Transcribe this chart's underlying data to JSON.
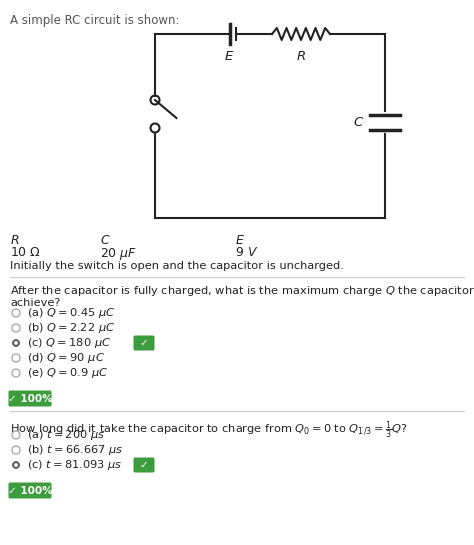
{
  "title": "A simple RC circuit is shown:",
  "bg_color": "#ffffff",
  "text_color": "#222222",
  "circuit_color": "#222222",
  "params_note": "Initially the switch is open and the capacitor is uncharged.",
  "q1_line1": "After the capacitor is fully charged, what is the maximum charge $Q$ the capacitor will",
  "q1_line2": "achieve?",
  "q1_options": [
    {
      "label": "(a) $Q = 0.45\\ \\mu C$",
      "selected": false,
      "correct": false
    },
    {
      "label": "(b) $Q = 2.22\\ \\mu C$",
      "selected": false,
      "correct": false
    },
    {
      "label": "(c) $Q = 180\\ \\mu C$",
      "selected": true,
      "correct": true
    },
    {
      "label": "(d) $Q = 90\\ \\mu C$",
      "selected": false,
      "correct": false
    },
    {
      "label": "(e) $Q = 0.9\\ \\mu C$",
      "selected": false,
      "correct": false
    }
  ],
  "q1_badge": "✓ 100%",
  "q2_text": "How long did it take the capacitor to charge from $Q_0 = 0$ to $Q_{1/3} = \\frac{1}{3}Q$?",
  "q2_options": [
    {
      "label": "(a) $t = 200\\ \\mu s$",
      "selected": false,
      "correct": false
    },
    {
      "label": "(b) $t = 66.667\\ \\mu s$",
      "selected": false,
      "correct": false
    },
    {
      "label": "(c) $t = 81.093\\ \\mu s$",
      "selected": true,
      "correct": true
    }
  ],
  "q2_badge": "✓ 100%",
  "green_badge_color": "#3d9c3d",
  "unselected_radio_color": "#aaaaaa",
  "correct_selected_color": "#666666",
  "separator_color": "#cccccc"
}
